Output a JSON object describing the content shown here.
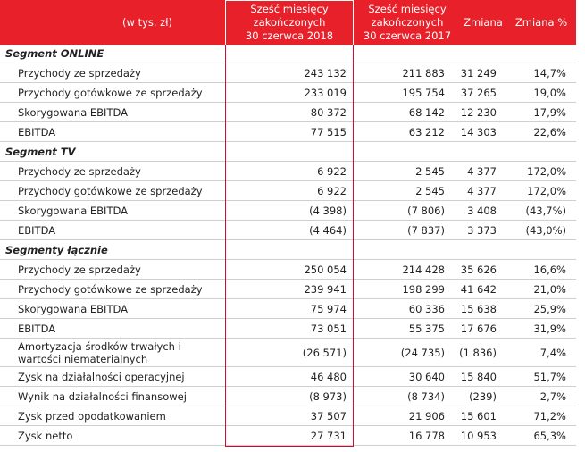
{
  "header": {
    "columns": [
      "(w tys. zł)",
      "Sześć miesięcy\nzakończonych\n30 czerwca 2018",
      "Sześć miesięcy\nzakończonych\n30 czerwca 2017",
      "Zmiana",
      "Zmiana %"
    ]
  },
  "sections": [
    {
      "title": "Segment ONLINE",
      "rows": [
        [
          "Przychody ze sprzedaży",
          "243 132",
          "211 883",
          "31 249",
          "14,7%"
        ],
        [
          "Przychody gotówkowe ze sprzedaży",
          "233 019",
          "195 754",
          "37 265",
          "19,0%"
        ],
        [
          "Skorygowana EBITDA",
          "80 372",
          "68 142",
          "12 230",
          "17,9%"
        ],
        [
          "EBITDA",
          "77 515",
          "63 212",
          "14 303",
          "22,6%"
        ]
      ]
    },
    {
      "title": "Segment TV",
      "rows": [
        [
          "Przychody ze sprzedaży",
          "6 922",
          "2 545",
          "4 377",
          "172,0%"
        ],
        [
          "Przychody gotówkowe ze sprzedaży",
          "6 922",
          "2 545",
          "4 377",
          "172,0%"
        ],
        [
          "Skorygowana EBITDA",
          "(4 398)",
          "(7 806)",
          "3 408",
          "(43,7%)"
        ],
        [
          "EBITDA",
          "(4 464)",
          "(7 837)",
          "3 373",
          "(43,0%)"
        ]
      ]
    },
    {
      "title": "Segmenty łącznie",
      "rows": [
        [
          "Przychody ze sprzedaży",
          "250 054",
          "214 428",
          "35 626",
          "16,6%"
        ],
        [
          "Przychody gotówkowe ze sprzedaży",
          "239 941",
          "198 299",
          "41 642",
          "21,0%"
        ],
        [
          "Skorygowana EBITDA",
          "75 974",
          "60 336",
          "15 638",
          "25,9%"
        ],
        [
          "EBITDA",
          "73 051",
          "55 375",
          "17 676",
          "31,9%"
        ],
        [
          "Amortyzacja środków trwałych i wartości niematerialnych",
          "(26 571)",
          "(24 735)",
          "(1 836)",
          "7,4%"
        ],
        [
          "Zysk na działalności operacyjnej",
          "46 480",
          "30 640",
          "15 840",
          "51,7%"
        ],
        [
          "Wynik na działalności finansowej",
          "(8 973)",
          "(8 734)",
          "(239)",
          "2,7%"
        ],
        [
          "Zysk przed opodatkowaniem",
          "37 507",
          "21 906",
          "15 601",
          "71,2%"
        ],
        [
          "Zysk netto",
          "27 731",
          "16 778",
          "10 953",
          "65,3%"
        ]
      ]
    }
  ]
}
